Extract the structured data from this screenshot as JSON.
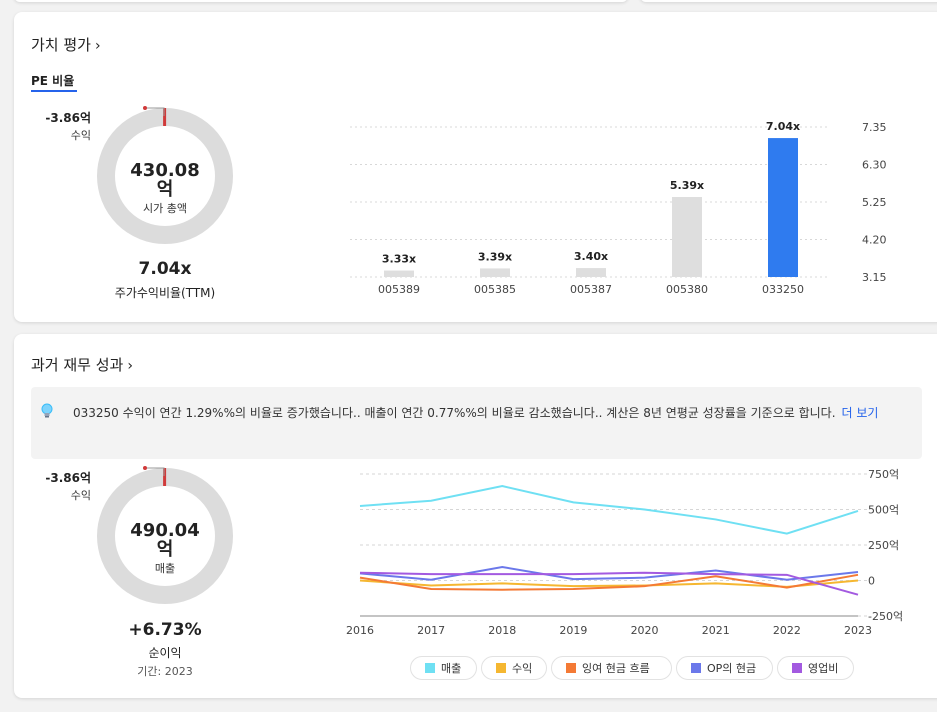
{
  "valuation": {
    "title": "가치 평가",
    "tab": "PE 비율",
    "donut": {
      "value": "430.08",
      "unit": "억",
      "label": "시가 총액",
      "side_value": "-3.86억",
      "side_label": "수익",
      "fraction": 0.009
    },
    "main_value": "7.04x",
    "main_label": "주가수익비율(TTM)",
    "chart_data": {
      "type": "bar",
      "categories": [
        "005389",
        "005385",
        "005387",
        "005380",
        "033250"
      ],
      "values": [
        3.33,
        3.39,
        3.4,
        5.39,
        7.04
      ],
      "value_labels": [
        "3.33x",
        "3.39x",
        "3.40x",
        "5.39x",
        "7.04x"
      ],
      "y_ticks": [
        "7.35",
        "6.30",
        "5.25",
        "4.20",
        "3.15"
      ],
      "ylim": [
        3.15,
        7.35
      ],
      "highlight_index": 4,
      "colors": {
        "bar": "#dedede",
        "highlight": "#2f7bef"
      },
      "grid": true
    }
  },
  "performance": {
    "title": "과거 재무 성과",
    "info_text": "033250 수익이 연간 1.29%%의 비율로 증가했습니다.. 매출이 연간 0.77%%의 비율로 감소했습니다.. 계산은 8년 연평균 성장률을 기준으로 합니다.",
    "more": "더 보기",
    "donut": {
      "value": "490.04",
      "unit": "억",
      "label": "매출",
      "side_value": "-3.86억",
      "side_label": "수익",
      "fraction": 0.008
    },
    "main_value": "+6.73%",
    "main_label": "순이익",
    "period": "기간: 2023",
    "chart_data": {
      "type": "line",
      "x": [
        "2016",
        "2017",
        "2018",
        "2019",
        "2020",
        "2021",
        "2022",
        "2023"
      ],
      "y_ticks": [
        "750억",
        "500억",
        "250억",
        "0",
        "-250억"
      ],
      "ylim": [
        -250,
        750
      ],
      "series": [
        {
          "name": "매출",
          "color": "#6fe0f3",
          "values": [
            525,
            562,
            665,
            550,
            500,
            430,
            330,
            490
          ]
        },
        {
          "name": "수익",
          "color": "#f5b731",
          "values": [
            0,
            -35,
            -20,
            -40,
            -35,
            -20,
            -45,
            0
          ]
        },
        {
          "name": "잉여 현금 흐름",
          "color": "#f47a35",
          "values": [
            20,
            -60,
            -65,
            -60,
            -40,
            30,
            -50,
            40
          ]
        },
        {
          "name": "OP의 현금",
          "color": "#6b78ea",
          "values": [
            50,
            5,
            95,
            10,
            20,
            70,
            5,
            60
          ]
        },
        {
          "name": "영업비",
          "color": "#a35ae0",
          "values": [
            55,
            45,
            45,
            45,
            55,
            45,
            40,
            -100
          ]
        }
      ]
    }
  }
}
